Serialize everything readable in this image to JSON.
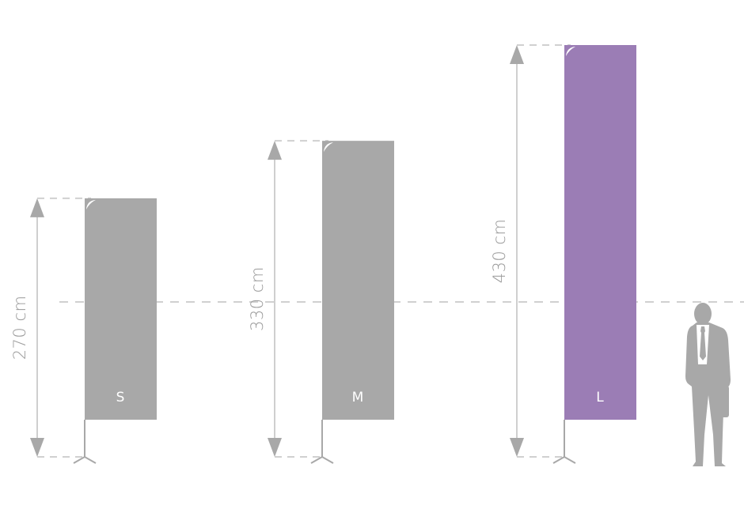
{
  "flags": [
    {
      "size_label": "S",
      "height_label": "270 cm",
      "height_cm": 270,
      "color": "#a8a8a8"
    },
    {
      "size_label": "M",
      "height_label": "330 cm",
      "height_cm": 330,
      "color": "#a8a8a8"
    },
    {
      "size_label": "L",
      "height_label": "430 cm",
      "height_cm": 430,
      "color": "#9b7db5"
    }
  ],
  "colors": {
    "dimension_line": "#cfcfcf",
    "arrowhead": "#a8a8a8",
    "guide": "#d0d0d0",
    "person": "#a8a8a8"
  },
  "icons": {
    "person": "businessman-silhouette-icon"
  }
}
